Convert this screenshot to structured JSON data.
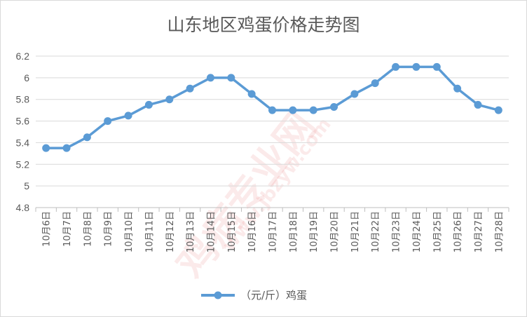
{
  "chart_data": {
    "type": "line",
    "title": "山东地区鸡蛋价格走势图",
    "categories": [
      "10月6日",
      "10月7日",
      "10月8日",
      "10月9日",
      "10月10日",
      "10月11日",
      "10月12日",
      "10月13日",
      "10月14日",
      "10月15日",
      "10月16日",
      "10月17日",
      "10月18日",
      "10月19日",
      "10月20日",
      "10月21日",
      "10月22日",
      "10月23日",
      "10月24日",
      "10月25日",
      "10月26日",
      "10月27日",
      "10月28日"
    ],
    "series": [
      {
        "name": "（元/斤）鸡蛋",
        "values": [
          5.35,
          5.35,
          5.45,
          5.6,
          5.65,
          5.75,
          5.8,
          5.9,
          6.0,
          6.0,
          5.85,
          5.7,
          5.7,
          5.7,
          5.73,
          5.85,
          5.95,
          6.1,
          6.1,
          6.1,
          5.9,
          5.75,
          5.7
        ]
      }
    ],
    "ylim": [
      4.8,
      6.2
    ],
    "yticks": [
      "4.8",
      "5",
      "5.2",
      "5.4",
      "5.6",
      "5.8",
      "6",
      "6.2"
    ],
    "xlabel": "",
    "ylabel": "",
    "grid": true,
    "legend": "bottom",
    "color": "#5b9bd5"
  },
  "watermark": {
    "text": "鸡病专业网",
    "url": "www.jbzyw.com"
  }
}
